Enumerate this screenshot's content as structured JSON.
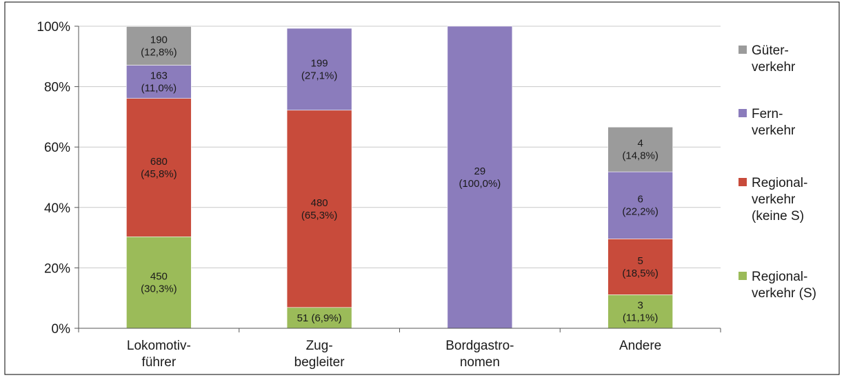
{
  "chart_data": {
    "type": "bar",
    "stacked": "percent",
    "categories": [
      [
        "Lokomotiv-",
        "führer"
      ],
      [
        "Zug-",
        "begleiter"
      ],
      [
        "Bordgastro-",
        "nomen"
      ],
      [
        "Andere"
      ]
    ],
    "series": [
      {
        "name": [
          "Regional-",
          "verkehr (S)"
        ],
        "color": "#9bbb59",
        "values": [
          30.3,
          6.9,
          0,
          11.1
        ],
        "labels": [
          [
            "450",
            "(30,3%)"
          ],
          [
            "51 (6,9%)"
          ],
          [],
          [
            "3",
            "(11,1%)"
          ]
        ]
      },
      {
        "name": [
          "Regional-",
          "verkehr",
          "(keine S)"
        ],
        "color": "#c84b3b",
        "values": [
          45.8,
          65.3,
          0,
          18.5
        ],
        "labels": [
          [
            "680",
            "(45,8%)"
          ],
          [
            "480",
            "(65,3%)"
          ],
          [],
          [
            "5",
            "(18,5%)"
          ]
        ]
      },
      {
        "name": [
          "Fern-",
          "verkehr"
        ],
        "color": "#8b7cbc",
        "values": [
          11.0,
          27.1,
          100.0,
          22.2
        ],
        "labels": [
          [
            "163",
            "(11,0%)"
          ],
          [
            "199",
            "(27,1%)"
          ],
          [
            "29",
            "(100,0%)"
          ],
          [
            "6",
            "(22,2%)"
          ]
        ]
      },
      {
        "name": [
          "Güter-",
          "verkehr"
        ],
        "color": "#9b9b9b",
        "values": [
          12.8,
          0,
          0,
          14.8
        ],
        "labels": [
          [
            "190",
            "(12,8%)"
          ],
          [],
          [],
          [
            "4",
            "(14,8%)"
          ]
        ]
      }
    ],
    "y_ticks": [
      "0%",
      "20%",
      "40%",
      "60%",
      "80%",
      "100%"
    ],
    "ylim": [
      0,
      100
    ],
    "grid": true,
    "legend_position": "right",
    "title": "",
    "xlabel": "",
    "ylabel": ""
  }
}
